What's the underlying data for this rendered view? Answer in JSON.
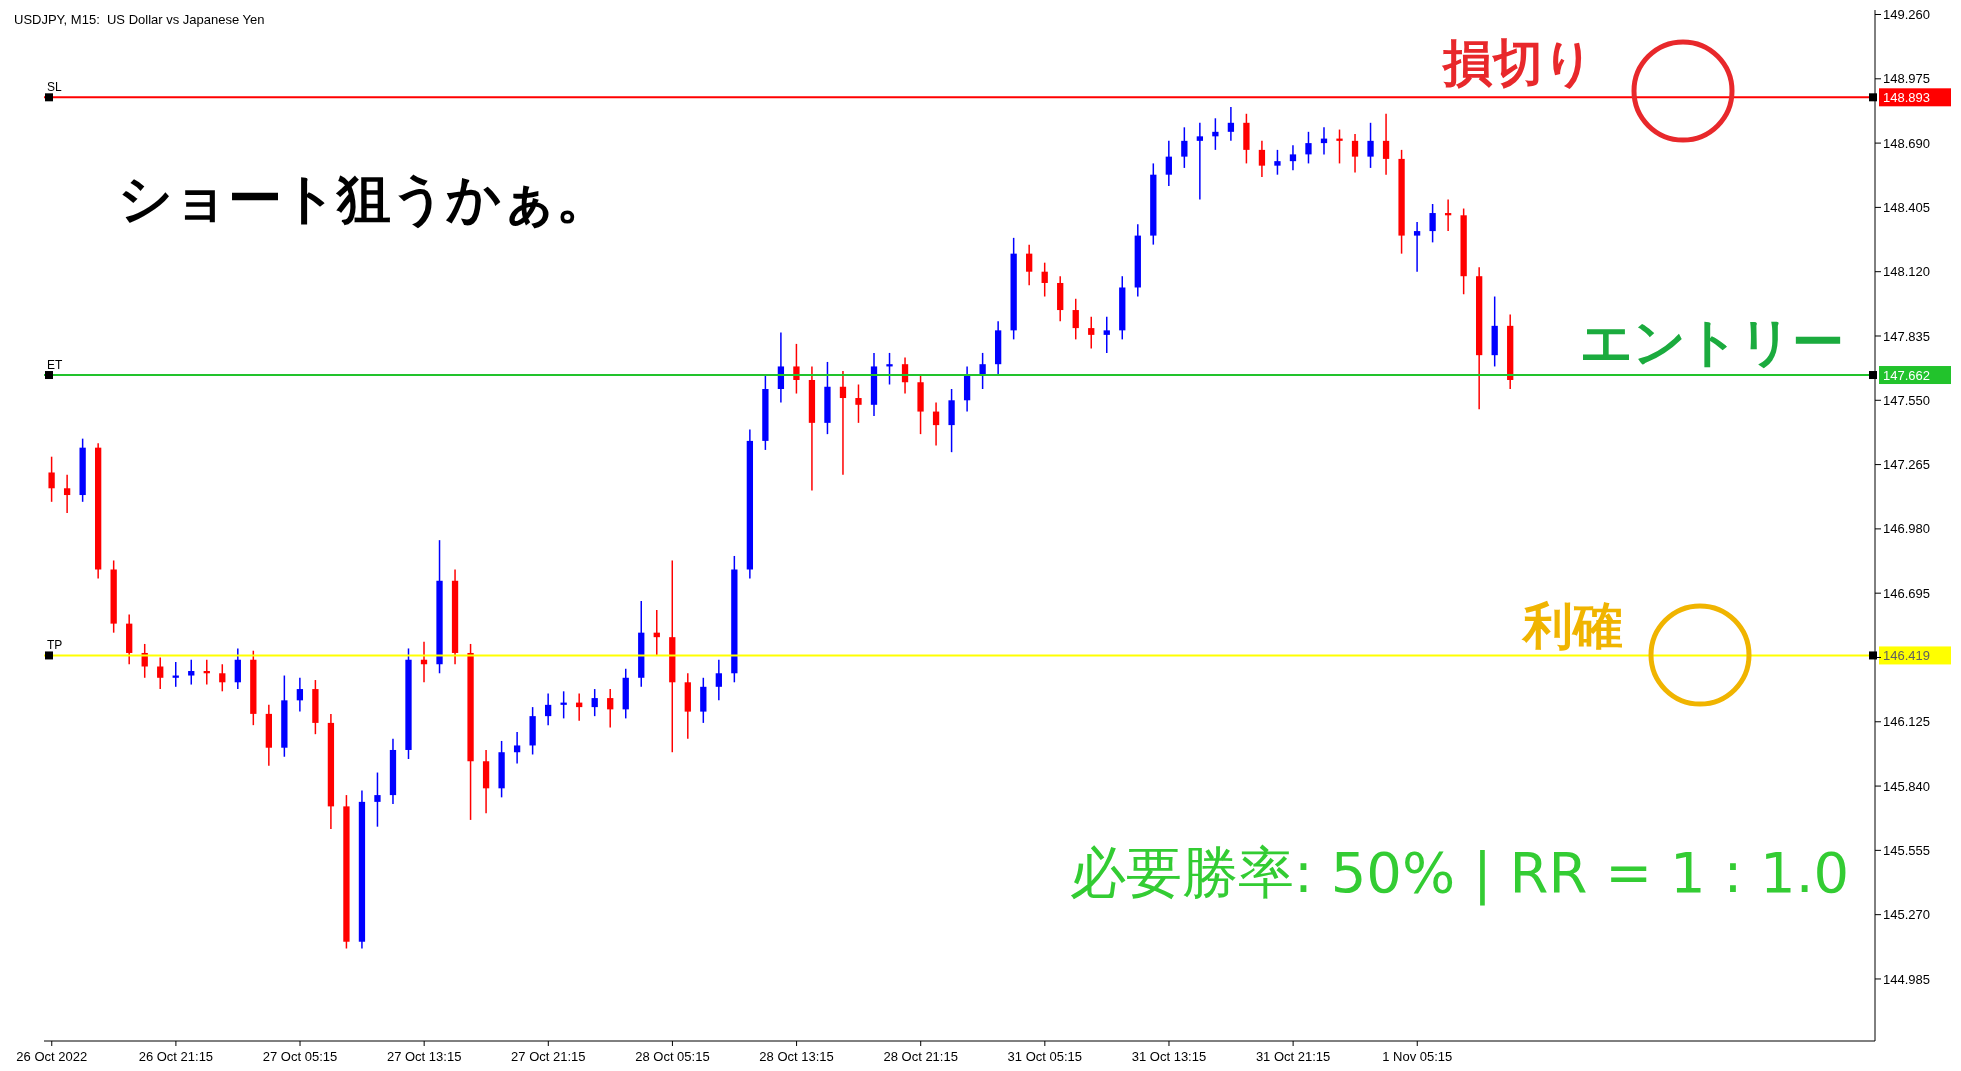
{
  "chart_data": {
    "type": "candlestick",
    "title": "USDJPY, M15:  US Dollar vs Japanese Yen",
    "categories": [
      "26 Oct 2022",
      null,
      null,
      null,
      null,
      null,
      null,
      null,
      "26 Oct 21:15",
      null,
      null,
      null,
      null,
      null,
      null,
      null,
      "27 Oct 05:15",
      null,
      null,
      null,
      null,
      null,
      null,
      null,
      "27 Oct 13:15",
      null,
      null,
      null,
      null,
      null,
      null,
      null,
      "27 Oct 21:15",
      null,
      null,
      null,
      null,
      null,
      null,
      null,
      "28 Oct 05:15",
      null,
      null,
      null,
      null,
      null,
      null,
      null,
      "28 Oct 13:15",
      null,
      null,
      null,
      null,
      null,
      null,
      null,
      "28 Oct 21:15",
      null,
      null,
      null,
      null,
      null,
      null,
      null,
      "31 Oct 05:15",
      null,
      null,
      null,
      null,
      null,
      null,
      null,
      "31 Oct 13:15",
      null,
      null,
      null,
      null,
      null,
      null,
      null,
      "31 Oct 21:15",
      null,
      null,
      null,
      null,
      null,
      null,
      null,
      "1 Nov 05:15",
      null,
      null,
      null,
      null,
      null,
      null,
      null,
      null,
      null,
      null,
      null,
      null,
      null,
      null,
      null,
      null,
      null,
      null,
      null,
      null,
      null,
      null,
      null,
      null,
      null,
      null,
      null,
      null,
      null
    ],
    "ohlc": [
      [
        147.23,
        147.3,
        147.1,
        147.16
      ],
      [
        147.16,
        147.22,
        147.05,
        147.13
      ],
      [
        147.13,
        147.38,
        147.1,
        147.34
      ],
      [
        147.34,
        147.36,
        146.76,
        146.8
      ],
      [
        146.8,
        146.84,
        146.52,
        146.56
      ],
      [
        146.56,
        146.6,
        146.38,
        146.43
      ],
      [
        146.43,
        146.47,
        146.32,
        146.37
      ],
      [
        146.37,
        146.41,
        146.27,
        146.32
      ],
      [
        146.32,
        146.39,
        146.28,
        146.33
      ],
      [
        146.33,
        146.4,
        146.29,
        146.35
      ],
      [
        146.35,
        146.4,
        146.29,
        146.34
      ],
      [
        146.34,
        146.38,
        146.26,
        146.3
      ],
      [
        146.3,
        146.45,
        146.27,
        146.4
      ],
      [
        146.4,
        146.44,
        146.11,
        146.16
      ],
      [
        146.16,
        146.2,
        145.93,
        146.01
      ],
      [
        146.01,
        146.33,
        145.97,
        146.22
      ],
      [
        146.22,
        146.32,
        146.17,
        146.27
      ],
      [
        146.27,
        146.31,
        146.07,
        146.12
      ],
      [
        146.12,
        146.16,
        145.65,
        145.75
      ],
      [
        145.75,
        145.8,
        145.12,
        145.15
      ],
      [
        145.15,
        145.82,
        145.12,
        145.77
      ],
      [
        145.77,
        145.9,
        145.66,
        145.8
      ],
      [
        145.8,
        146.05,
        145.76,
        146.0
      ],
      [
        146.0,
        146.45,
        145.96,
        146.4
      ],
      [
        146.4,
        146.48,
        146.3,
        146.38
      ],
      [
        146.38,
        146.93,
        146.34,
        146.75
      ],
      [
        146.75,
        146.8,
        146.38,
        146.43
      ],
      [
        146.43,
        146.47,
        145.69,
        145.95
      ],
      [
        145.95,
        146.0,
        145.72,
        145.83
      ],
      [
        145.83,
        146.04,
        145.79,
        145.99
      ],
      [
        145.99,
        146.08,
        145.94,
        146.02
      ],
      [
        146.02,
        146.19,
        145.98,
        146.15
      ],
      [
        146.15,
        146.25,
        146.11,
        146.2
      ],
      [
        146.2,
        146.26,
        146.14,
        146.21
      ],
      [
        146.21,
        146.25,
        146.13,
        146.19
      ],
      [
        146.19,
        146.27,
        146.15,
        146.23
      ],
      [
        146.23,
        146.27,
        146.1,
        146.18
      ],
      [
        146.18,
        146.36,
        146.14,
        146.32
      ],
      [
        146.32,
        146.66,
        146.28,
        146.52
      ],
      [
        146.52,
        146.62,
        146.42,
        146.5
      ],
      [
        146.5,
        146.84,
        145.99,
        146.3
      ],
      [
        146.3,
        146.34,
        146.05,
        146.17
      ],
      [
        146.17,
        146.32,
        146.12,
        146.28
      ],
      [
        146.28,
        146.4,
        146.22,
        146.34
      ],
      [
        146.34,
        146.86,
        146.3,
        146.8
      ],
      [
        146.8,
        147.42,
        146.76,
        147.37
      ],
      [
        147.37,
        147.66,
        147.33,
        147.6
      ],
      [
        147.6,
        147.85,
        147.54,
        147.7
      ],
      [
        147.7,
        147.8,
        147.58,
        147.64
      ],
      [
        147.64,
        147.7,
        147.15,
        147.45
      ],
      [
        147.45,
        147.72,
        147.4,
        147.61
      ],
      [
        147.61,
        147.68,
        147.22,
        147.56
      ],
      [
        147.56,
        147.62,
        147.45,
        147.53
      ],
      [
        147.53,
        147.76,
        147.48,
        147.7
      ],
      [
        147.7,
        147.76,
        147.62,
        147.71
      ],
      [
        147.71,
        147.74,
        147.58,
        147.63
      ],
      [
        147.63,
        147.66,
        147.4,
        147.5
      ],
      [
        147.5,
        147.54,
        147.35,
        147.44
      ],
      [
        147.44,
        147.6,
        147.32,
        147.55
      ],
      [
        147.55,
        147.7,
        147.5,
        147.66
      ],
      [
        147.66,
        147.76,
        147.6,
        147.71
      ],
      [
        147.71,
        147.9,
        147.66,
        147.86
      ],
      [
        147.86,
        148.27,
        147.82,
        148.2
      ],
      [
        148.2,
        148.24,
        148.06,
        148.12
      ],
      [
        148.12,
        148.16,
        148.01,
        148.07
      ],
      [
        148.07,
        148.1,
        147.9,
        147.95
      ],
      [
        147.95,
        148.0,
        147.82,
        147.87
      ],
      [
        147.87,
        147.92,
        147.78,
        147.84
      ],
      [
        147.84,
        147.92,
        147.76,
        147.86
      ],
      [
        147.86,
        148.1,
        147.82,
        148.05
      ],
      [
        148.05,
        148.33,
        148.01,
        148.28
      ],
      [
        148.28,
        148.6,
        148.24,
        148.55
      ],
      [
        148.55,
        148.7,
        148.5,
        148.63
      ],
      [
        148.63,
        148.76,
        148.58,
        148.7
      ],
      [
        148.7,
        148.78,
        148.44,
        148.72
      ],
      [
        148.72,
        148.8,
        148.66,
        148.74
      ],
      [
        148.74,
        148.85,
        148.7,
        148.78
      ],
      [
        148.78,
        148.82,
        148.6,
        148.66
      ],
      [
        148.66,
        148.7,
        148.54,
        148.59
      ],
      [
        148.59,
        148.66,
        148.55,
        148.61
      ],
      [
        148.61,
        148.68,
        148.57,
        148.64
      ],
      [
        148.64,
        148.74,
        148.6,
        148.69
      ],
      [
        148.69,
        148.76,
        148.64,
        148.71
      ],
      [
        148.71,
        148.75,
        148.6,
        148.7
      ],
      [
        148.7,
        148.73,
        148.56,
        148.63
      ],
      [
        148.63,
        148.78,
        148.58,
        148.7
      ],
      [
        148.7,
        148.82,
        148.55,
        148.62
      ],
      [
        148.62,
        148.66,
        148.2,
        148.28
      ],
      [
        148.28,
        148.34,
        148.12,
        148.3
      ],
      [
        148.3,
        148.42,
        148.25,
        148.38
      ],
      [
        148.38,
        148.44,
        148.3,
        148.37
      ],
      [
        148.37,
        148.4,
        148.02,
        148.1
      ],
      [
        148.1,
        148.14,
        147.51,
        147.75
      ],
      [
        147.75,
        148.01,
        147.7,
        147.88
      ],
      [
        147.88,
        147.93,
        147.6,
        147.64
      ],
      null,
      null,
      null,
      null,
      null,
      null,
      null,
      null,
      null,
      null,
      null,
      null,
      null,
      null,
      null,
      null,
      null,
      null,
      null,
      null,
      null,
      null,
      null
    ],
    "colors": [
      "#ff0000",
      "#ff0000",
      "#0000ff",
      "#ff0000",
      "#ff0000",
      "#ff0000",
      "#ff0000",
      "#ff0000",
      "#0000ff",
      "#0000ff",
      "#ff0000",
      "#ff0000",
      "#0000ff",
      "#ff0000",
      "#ff0000",
      "#0000ff",
      "#0000ff",
      "#ff0000",
      "#ff0000",
      "#ff0000",
      "#0000ff",
      "#0000ff",
      "#0000ff",
      "#0000ff",
      "#ff0000",
      "#0000ff",
      "#ff0000",
      "#ff0000",
      "#ff0000",
      "#0000ff",
      "#0000ff",
      "#0000ff",
      "#0000ff",
      "#0000ff",
      "#ff0000",
      "#0000ff",
      "#ff0000",
      "#0000ff",
      "#0000ff",
      "#ff0000",
      "#ff0000",
      "#ff0000",
      "#0000ff",
      "#0000ff",
      "#0000ff",
      "#0000ff",
      "#0000ff",
      "#0000ff",
      "#ff0000",
      "#ff0000",
      "#0000ff",
      "#ff0000",
      "#ff0000",
      "#0000ff",
      "#0000ff",
      "#ff0000",
      "#ff0000",
      "#ff0000",
      "#0000ff",
      "#0000ff",
      "#0000ff",
      "#0000ff",
      "#0000ff",
      "#ff0000",
      "#ff0000",
      "#ff0000",
      "#ff0000",
      "#ff0000",
      "#0000ff",
      "#0000ff",
      "#0000ff",
      "#0000ff",
      "#0000ff",
      "#0000ff",
      "#0000ff",
      "#0000ff",
      "#0000ff",
      "#ff0000",
      "#ff0000",
      "#0000ff",
      "#0000ff",
      "#0000ff",
      "#0000ff",
      "#ff0000",
      "#ff0000",
      "#0000ff",
      "#ff0000",
      "#ff0000",
      "#0000ff",
      "#0000ff",
      "#ff0000",
      "#ff0000",
      "#ff0000",
      "#0000ff",
      "#ff0000",
      null,
      null,
      null,
      null,
      null,
      null,
      null,
      null,
      null,
      null,
      null,
      null,
      null,
      null,
      null,
      null,
      null,
      null,
      null,
      null,
      null,
      null,
      null
    ],
    "ylim": [
      144.71,
      149.28
    ],
    "yticks": [
      {
        "value": 144.985,
        "label": "144.985"
      },
      {
        "value": 145.27,
        "label": "145.270"
      },
      {
        "value": 145.555,
        "label": "145.555"
      },
      {
        "value": 145.84,
        "label": "145.840"
      },
      {
        "value": 146.125,
        "label": "146.125"
      },
      {
        "value": 146.41,
        "label": null
      },
      {
        "value": 146.695,
        "label": "146.695"
      },
      {
        "value": 146.98,
        "label": "146.980"
      },
      {
        "value": 147.265,
        "label": "147.265"
      },
      {
        "value": 147.55,
        "label": "147.550"
      },
      {
        "value": 147.835,
        "label": "147.835"
      },
      {
        "value": 148.12,
        "label": "148.120"
      },
      {
        "value": 148.405,
        "label": "148.405"
      },
      {
        "value": 148.69,
        "label": "148.690"
      },
      {
        "value": 148.975,
        "label": "148.975"
      },
      {
        "value": 149.26,
        "label": "149.260"
      }
    ],
    "ref_lines": [
      {
        "axis": "y",
        "value": 148.893,
        "label": "SL",
        "color": "#ff0000"
      },
      {
        "axis": "y",
        "value": 147.662,
        "label": "ET",
        "color": "#22c32c"
      },
      {
        "axis": "y",
        "value": 146.419,
        "label": "TP",
        "color": "#ffff00"
      }
    ],
    "annotations": [
      "ショート狙うかぁ。",
      "損切り",
      "エントリー",
      "利確",
      "必要勝率: 50% | RR = 1 : 1.0",
      "148.893",
      "147.662",
      "146.419"
    ]
  }
}
